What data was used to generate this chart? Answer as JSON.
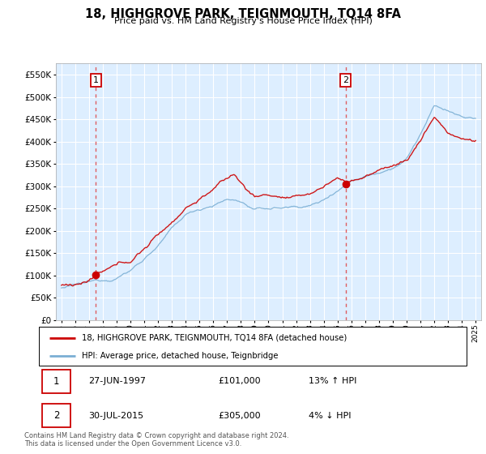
{
  "title": "18, HIGHGROVE PARK, TEIGNMOUTH, TQ14 8FA",
  "subtitle": "Price paid vs. HM Land Registry's House Price Index (HPI)",
  "sale1_date": "27-JUN-1997",
  "sale1_price": 101000,
  "sale1_hpi": "13% ↑ HPI",
  "sale2_date": "30-JUL-2015",
  "sale2_price": 305000,
  "sale2_hpi": "4% ↓ HPI",
  "sale1_year": 1997.5,
  "sale2_year": 2015.583,
  "legend_line1": "18, HIGHGROVE PARK, TEIGNMOUTH, TQ14 8FA (detached house)",
  "legend_line2": "HPI: Average price, detached house, Teignbridge",
  "footer1": "Contains HM Land Registry data © Crown copyright and database right 2024.",
  "footer2": "This data is licensed under the Open Government Licence v3.0.",
  "ylim": [
    0,
    575000
  ],
  "yticks": [
    0,
    50000,
    100000,
    150000,
    200000,
    250000,
    300000,
    350000,
    400000,
    450000,
    500000,
    550000
  ],
  "price_line_color": "#cc0000",
  "hpi_line_color": "#7bafd4",
  "background_color": "#ddeeff",
  "sale_marker_color": "#cc0000",
  "dashed_line_color": "#dd4444",
  "box_edge_color": "#cc0000",
  "grid_color": "#ffffff",
  "spine_color": "#aaaaaa"
}
